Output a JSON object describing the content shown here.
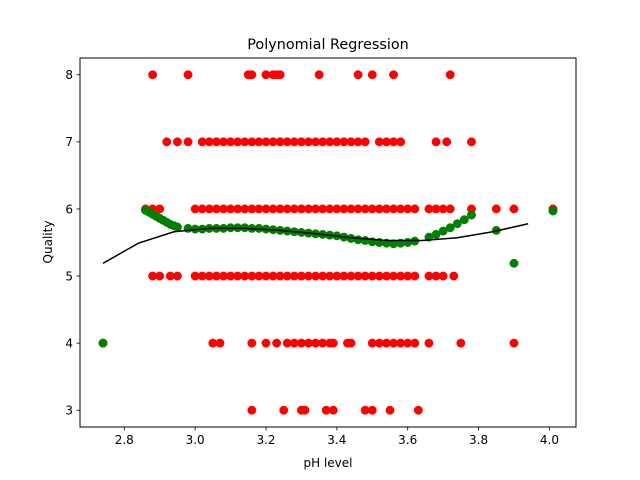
{
  "chart_data": {
    "type": "scatter",
    "title": "Polynomial Regression",
    "xlabel": "pH level",
    "ylabel": "Quality",
    "xlim": [
      2.675,
      4.075
    ],
    "ylim": [
      2.75,
      8.25
    ],
    "grid": false,
    "x_ticks": [
      "2.8",
      "3.0",
      "3.2",
      "3.4",
      "3.6",
      "3.8",
      "4.0"
    ],
    "y_ticks": [
      "3",
      "4",
      "5",
      "6",
      "7",
      "8"
    ],
    "x_tick_values": [
      2.8,
      3.0,
      3.2,
      3.4,
      3.6,
      3.8,
      4.0
    ],
    "y_tick_values": [
      3,
      4,
      5,
      6,
      7,
      8
    ],
    "colors": {
      "actual": "#ff0000",
      "predicted": "#008000",
      "line": "#000000"
    },
    "series": [
      {
        "kind": "scatter",
        "color": "#ff0000",
        "points": [
          [
            2.88,
            8
          ],
          [
            2.98,
            8
          ],
          [
            3.15,
            8
          ],
          [
            3.16,
            8
          ],
          [
            3.2,
            8
          ],
          [
            3.22,
            8
          ],
          [
            3.23,
            8
          ],
          [
            3.24,
            8
          ],
          [
            3.35,
            8
          ],
          [
            3.46,
            8
          ],
          [
            3.5,
            8
          ],
          [
            3.56,
            8
          ],
          [
            3.72,
            8
          ],
          [
            2.92,
            7
          ],
          [
            2.95,
            7
          ],
          [
            2.98,
            7
          ],
          [
            3.02,
            7
          ],
          [
            3.04,
            7
          ],
          [
            3.06,
            7
          ],
          [
            3.08,
            7
          ],
          [
            3.1,
            7
          ],
          [
            3.12,
            7
          ],
          [
            3.14,
            7
          ],
          [
            3.16,
            7
          ],
          [
            3.18,
            7
          ],
          [
            3.2,
            7
          ],
          [
            3.22,
            7
          ],
          [
            3.24,
            7
          ],
          [
            3.26,
            7
          ],
          [
            3.28,
            7
          ],
          [
            3.3,
            7
          ],
          [
            3.32,
            7
          ],
          [
            3.34,
            7
          ],
          [
            3.36,
            7
          ],
          [
            3.38,
            7
          ],
          [
            3.4,
            7
          ],
          [
            3.42,
            7
          ],
          [
            3.44,
            7
          ],
          [
            3.46,
            7
          ],
          [
            3.48,
            7
          ],
          [
            3.52,
            7
          ],
          [
            3.54,
            7
          ],
          [
            3.56,
            7
          ],
          [
            3.58,
            7
          ],
          [
            3.68,
            7
          ],
          [
            3.71,
            7
          ],
          [
            3.78,
            7
          ],
          [
            2.86,
            6
          ],
          [
            2.88,
            6
          ],
          [
            2.9,
            6
          ],
          [
            3.0,
            6
          ],
          [
            3.02,
            6
          ],
          [
            3.04,
            6
          ],
          [
            3.06,
            6
          ],
          [
            3.08,
            6
          ],
          [
            3.1,
            6
          ],
          [
            3.12,
            6
          ],
          [
            3.14,
            6
          ],
          [
            3.16,
            6
          ],
          [
            3.18,
            6
          ],
          [
            3.2,
            6
          ],
          [
            3.22,
            6
          ],
          [
            3.24,
            6
          ],
          [
            3.26,
            6
          ],
          [
            3.28,
            6
          ],
          [
            3.3,
            6
          ],
          [
            3.32,
            6
          ],
          [
            3.34,
            6
          ],
          [
            3.36,
            6
          ],
          [
            3.38,
            6
          ],
          [
            3.4,
            6
          ],
          [
            3.42,
            6
          ],
          [
            3.44,
            6
          ],
          [
            3.46,
            6
          ],
          [
            3.48,
            6
          ],
          [
            3.5,
            6
          ],
          [
            3.52,
            6
          ],
          [
            3.54,
            6
          ],
          [
            3.56,
            6
          ],
          [
            3.58,
            6
          ],
          [
            3.6,
            6
          ],
          [
            3.62,
            6
          ],
          [
            3.66,
            6
          ],
          [
            3.68,
            6
          ],
          [
            3.7,
            6
          ],
          [
            3.72,
            6
          ],
          [
            3.78,
            6
          ],
          [
            3.85,
            6
          ],
          [
            3.9,
            6
          ],
          [
            4.01,
            6
          ],
          [
            2.88,
            5
          ],
          [
            2.9,
            5
          ],
          [
            2.93,
            5
          ],
          [
            2.95,
            5
          ],
          [
            3.0,
            5
          ],
          [
            3.02,
            5
          ],
          [
            3.04,
            5
          ],
          [
            3.06,
            5
          ],
          [
            3.08,
            5
          ],
          [
            3.1,
            5
          ],
          [
            3.12,
            5
          ],
          [
            3.14,
            5
          ],
          [
            3.16,
            5
          ],
          [
            3.18,
            5
          ],
          [
            3.2,
            5
          ],
          [
            3.22,
            5
          ],
          [
            3.24,
            5
          ],
          [
            3.26,
            5
          ],
          [
            3.28,
            5
          ],
          [
            3.3,
            5
          ],
          [
            3.32,
            5
          ],
          [
            3.34,
            5
          ],
          [
            3.36,
            5
          ],
          [
            3.38,
            5
          ],
          [
            3.4,
            5
          ],
          [
            3.42,
            5
          ],
          [
            3.44,
            5
          ],
          [
            3.46,
            5
          ],
          [
            3.48,
            5
          ],
          [
            3.5,
            5
          ],
          [
            3.52,
            5
          ],
          [
            3.54,
            5
          ],
          [
            3.56,
            5
          ],
          [
            3.58,
            5
          ],
          [
            3.6,
            5
          ],
          [
            3.62,
            5
          ],
          [
            3.66,
            5
          ],
          [
            3.68,
            5
          ],
          [
            3.7,
            5
          ],
          [
            3.73,
            5
          ],
          [
            2.74,
            4
          ],
          [
            3.05,
            4
          ],
          [
            3.07,
            4
          ],
          [
            3.16,
            4
          ],
          [
            3.2,
            4
          ],
          [
            3.23,
            4
          ],
          [
            3.26,
            4
          ],
          [
            3.28,
            4
          ],
          [
            3.3,
            4
          ],
          [
            3.32,
            4
          ],
          [
            3.34,
            4
          ],
          [
            3.36,
            4
          ],
          [
            3.38,
            4
          ],
          [
            3.39,
            4
          ],
          [
            3.43,
            4
          ],
          [
            3.44,
            4
          ],
          [
            3.5,
            4
          ],
          [
            3.52,
            4
          ],
          [
            3.54,
            4
          ],
          [
            3.56,
            4
          ],
          [
            3.58,
            4
          ],
          [
            3.6,
            4
          ],
          [
            3.62,
            4
          ],
          [
            3.66,
            4
          ],
          [
            3.75,
            4
          ],
          [
            3.9,
            4
          ],
          [
            3.16,
            3
          ],
          [
            3.25,
            3
          ],
          [
            3.3,
            3
          ],
          [
            3.31,
            3
          ],
          [
            3.37,
            3
          ],
          [
            3.39,
            3
          ],
          [
            3.48,
            3
          ],
          [
            3.5,
            3
          ],
          [
            3.55,
            3
          ],
          [
            3.63,
            3
          ]
        ]
      },
      {
        "kind": "scatter",
        "color": "#008000",
        "points": [
          [
            2.74,
            4.0
          ],
          [
            2.86,
            5.98
          ],
          [
            2.87,
            5.95
          ],
          [
            2.88,
            5.92
          ],
          [
            2.89,
            5.89
          ],
          [
            2.9,
            5.86
          ],
          [
            2.91,
            5.83
          ],
          [
            2.92,
            5.8
          ],
          [
            2.93,
            5.77
          ],
          [
            2.94,
            5.75
          ],
          [
            2.95,
            5.73
          ],
          [
            2.98,
            5.71
          ],
          [
            3.0,
            5.7
          ],
          [
            3.02,
            5.7
          ],
          [
            3.04,
            5.71
          ],
          [
            3.06,
            5.71
          ],
          [
            3.08,
            5.71
          ],
          [
            3.1,
            5.72
          ],
          [
            3.12,
            5.72
          ],
          [
            3.14,
            5.72
          ],
          [
            3.16,
            5.71
          ],
          [
            3.18,
            5.71
          ],
          [
            3.2,
            5.7
          ],
          [
            3.22,
            5.69
          ],
          [
            3.24,
            5.68
          ],
          [
            3.26,
            5.67
          ],
          [
            3.28,
            5.66
          ],
          [
            3.3,
            5.65
          ],
          [
            3.32,
            5.64
          ],
          [
            3.34,
            5.63
          ],
          [
            3.36,
            5.62
          ],
          [
            3.38,
            5.61
          ],
          [
            3.4,
            5.6
          ],
          [
            3.42,
            5.58
          ],
          [
            3.44,
            5.56
          ],
          [
            3.46,
            5.54
          ],
          [
            3.48,
            5.53
          ],
          [
            3.5,
            5.51
          ],
          [
            3.52,
            5.5
          ],
          [
            3.54,
            5.49
          ],
          [
            3.56,
            5.48
          ],
          [
            3.58,
            5.49
          ],
          [
            3.6,
            5.5
          ],
          [
            3.62,
            5.52
          ],
          [
            3.66,
            5.58
          ],
          [
            3.68,
            5.62
          ],
          [
            3.7,
            5.67
          ],
          [
            3.72,
            5.72
          ],
          [
            3.74,
            5.78
          ],
          [
            3.76,
            5.84
          ],
          [
            3.78,
            5.91
          ],
          [
            3.85,
            5.68
          ],
          [
            3.9,
            5.19
          ],
          [
            4.01,
            5.97
          ]
        ]
      },
      {
        "kind": "line",
        "color": "#000000",
        "points": [
          [
            2.74,
            5.19
          ],
          [
            2.84,
            5.49
          ],
          [
            2.94,
            5.66
          ],
          [
            3.04,
            5.71
          ],
          [
            3.14,
            5.71
          ],
          [
            3.24,
            5.68
          ],
          [
            3.34,
            5.63
          ],
          [
            3.44,
            5.57
          ],
          [
            3.54,
            5.53
          ],
          [
            3.64,
            5.53
          ],
          [
            3.74,
            5.57
          ],
          [
            3.84,
            5.66
          ],
          [
            3.94,
            5.78
          ]
        ]
      }
    ]
  }
}
